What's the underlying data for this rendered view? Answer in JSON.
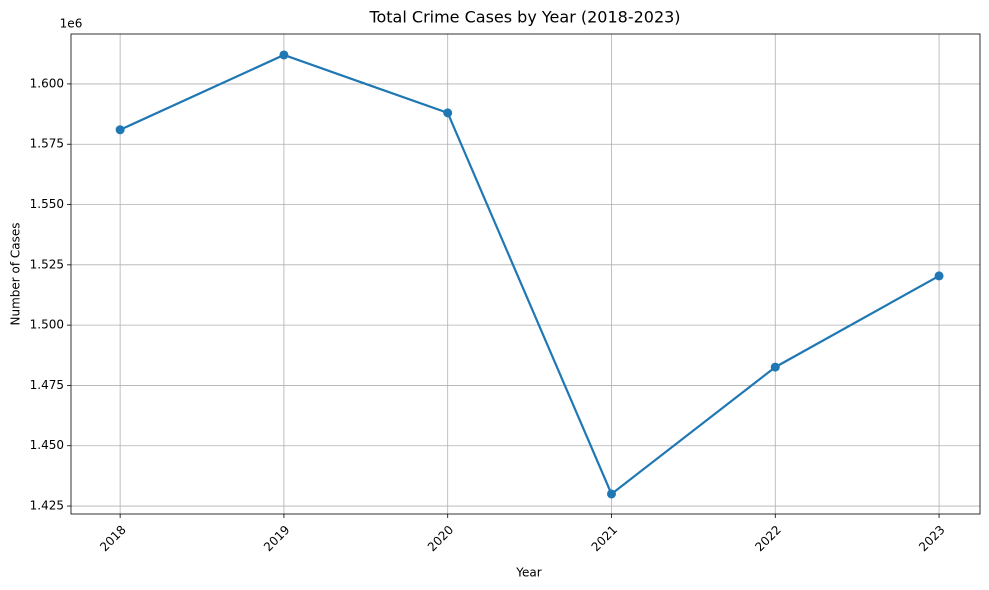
{
  "chart_data": {
    "type": "line",
    "title": "Total Crime Cases by Year (2018-2023)",
    "x_label": "Year",
    "y_label": "Number of Cases",
    "y_offset_label": "1e6",
    "x": [
      2018,
      2019,
      2020,
      2021,
      2022,
      2023
    ],
    "series": [
      {
        "name": "Total Crime Cases",
        "color": "#1f77b4",
        "values": [
          1581000,
          1612000,
          1588000,
          1430000,
          1482600,
          1520400
        ]
      }
    ],
    "xlim": [
      2017.7,
      2023.25
    ],
    "xticks": [
      2018,
      2019,
      2020,
      2021,
      2022,
      2023
    ],
    "ylim": [
      1421700,
      1620700
    ],
    "yticks": [
      {
        "value": 1425000,
        "label": "1.425"
      },
      {
        "value": 1450000,
        "label": "1.450"
      },
      {
        "value": 1475000,
        "label": "1.475"
      },
      {
        "value": 1500000,
        "label": "1.500"
      },
      {
        "value": 1525000,
        "label": "1.525"
      },
      {
        "value": 1550000,
        "label": "1.550"
      },
      {
        "value": 1575000,
        "label": "1.575"
      },
      {
        "value": 1600000,
        "label": "1.600"
      }
    ],
    "grid": true
  }
}
